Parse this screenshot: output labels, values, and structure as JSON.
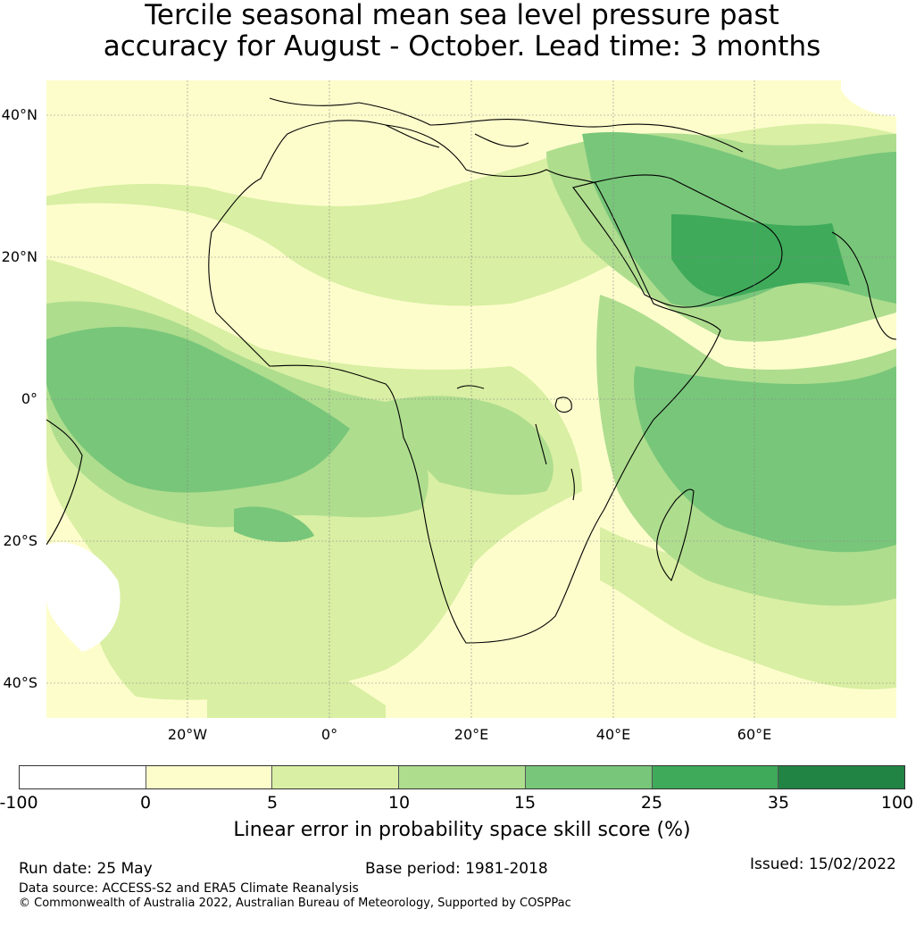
{
  "title": {
    "line1": "Tercile seasonal mean sea level pressure past",
    "line2": "accuracy for August - October. Lead time: 3 months"
  },
  "map": {
    "lat_labels": [
      "40°N",
      "20°N",
      "0°",
      "20°S",
      "40°S"
    ],
    "lon_labels": [
      "20°W",
      "0°",
      "20°E",
      "40°E",
      "60°E"
    ],
    "lon_range": [
      -40,
      80
    ],
    "lat_range": [
      -45,
      45
    ]
  },
  "colorbar": {
    "ticks": [
      "-100",
      "0",
      "5",
      "10",
      "15",
      "25",
      "35",
      "100"
    ],
    "colors": [
      "#ffffff",
      "#fdfdcc",
      "#d9efa3",
      "#aedd8e",
      "#78c67a",
      "#3eaa5a",
      "#218444"
    ],
    "label": "Linear error in probability space skill score (%)"
  },
  "footer": {
    "run_date": "Run date: 25 May",
    "base_period": "Base period: 1981-2018",
    "issued": "Issued: 15/02/2022",
    "data_source": "Data source: ACCESS-S2 and ERA5 Climate Reanalysis",
    "copyright": "© Commonwealth of Australia 2022, Australian Bureau of Meteorology, Supported by COSPPac"
  }
}
